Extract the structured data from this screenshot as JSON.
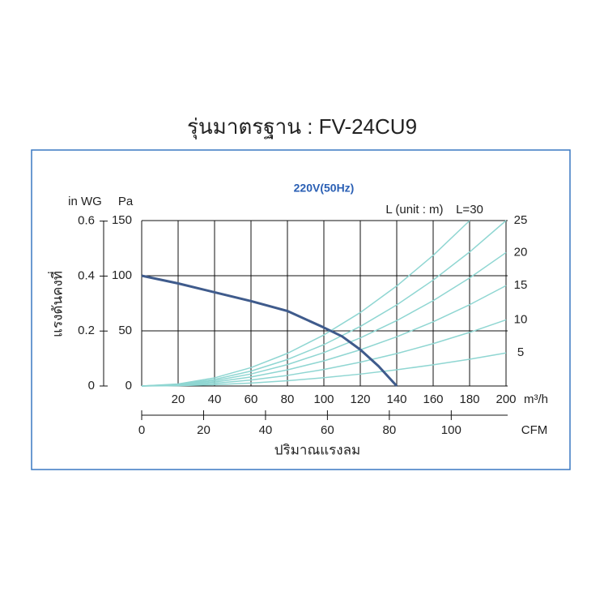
{
  "chart_data": {
    "type": "line",
    "title": "รุ่นมาตรฐาน : FV-24CU9",
    "subtitle": "220V(50Hz)",
    "ylabel": "แรงดันคงที่",
    "xlabel": "ปริมาณแรงลม",
    "y_unit": "Pa",
    "y2_unit": "in WG",
    "x_unit": "m³/h",
    "x2_unit": "CFM",
    "series_note": "L (unit : m)",
    "xlim": [
      0,
      200
    ],
    "xticks": [
      20,
      40,
      60,
      80,
      100,
      120,
      140,
      160,
      180,
      200
    ],
    "x2lim": [
      0,
      117.7
    ],
    "x2ticks": [
      0,
      20,
      40,
      60,
      80,
      100
    ],
    "ylim": [
      0,
      150
    ],
    "yticks": [
      0,
      50,
      100,
      150
    ],
    "y2lim": [
      0,
      0.602
    ],
    "y2ticks": [
      0,
      0.2,
      0.4,
      0.6
    ],
    "grid": true,
    "fan": {
      "color": "#3f5b8c",
      "x": [
        0,
        20,
        40,
        60,
        80,
        100,
        110,
        120,
        130,
        140
      ],
      "values": [
        100,
        93,
        85,
        77,
        68,
        53,
        45,
        33,
        18,
        0
      ]
    },
    "x": [
      0,
      20,
      40,
      60,
      80,
      100,
      120,
      140,
      160,
      180,
      200
    ],
    "series": [
      {
        "name": "5",
        "color": "#8fd6d2",
        "values": [
          0,
          0.3,
          1.2,
          2.7,
          4.8,
          7.5,
          10.8,
          14.7,
          19.2,
          24.3,
          30
        ]
      },
      {
        "name": "10",
        "color": "#8fd6d2",
        "values": [
          0,
          0.6,
          2.4,
          5.4,
          9.6,
          15,
          21.6,
          29.4,
          38.4,
          48.6,
          60
        ]
      },
      {
        "name": "15",
        "color": "#8fd6d2",
        "values": [
          0,
          0.9,
          3.6,
          8.2,
          14.6,
          22.8,
          32.8,
          44.6,
          58.2,
          73.7,
          91
        ]
      },
      {
        "name": "20",
        "color": "#8fd6d2",
        "values": [
          0,
          1.2,
          4.8,
          10.9,
          19.4,
          30.3,
          43.6,
          59.3,
          77.4,
          98,
          121
        ]
      },
      {
        "name": "25",
        "color": "#8fd6d2",
        "values": [
          0,
          1.5,
          6,
          13.5,
          24,
          37.5,
          54,
          73.5,
          96,
          121.5,
          150
        ]
      },
      {
        "name": "L=30",
        "color": "#8fd6d2",
        "values": [
          0,
          1.85,
          7.4,
          16.7,
          29.6,
          46.3,
          66.6,
          90.7,
          118.4,
          149.9,
          null
        ]
      }
    ]
  }
}
